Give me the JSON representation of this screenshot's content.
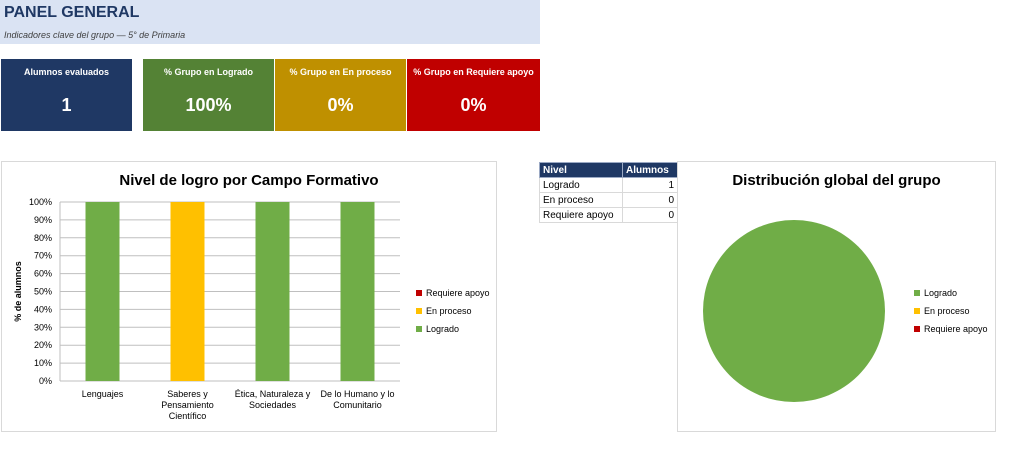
{
  "header": {
    "title": "PANEL GENERAL",
    "subtitle": "Indicadores clave del grupo — 5° de Primaria"
  },
  "kpis": [
    {
      "label": "Alumnos evaluados",
      "value": "1",
      "color": "#1f3864"
    },
    {
      "label": "% Grupo en Logrado",
      "value": "100%",
      "color": "#548235"
    },
    {
      "label": "% Grupo en En proceso",
      "value": "0%",
      "color": "#bf9000"
    },
    {
      "label": "% Grupo en Requiere apoyo",
      "value": "0%",
      "color": "#c00000"
    }
  ],
  "colors": {
    "logrado": "#70ad47",
    "en_proceso": "#ffc000",
    "requiere_apoyo": "#c00000"
  },
  "table": {
    "headers": [
      "Nivel",
      "Alumnos"
    ],
    "rows": [
      {
        "nivel": "Logrado",
        "alumnos": "1"
      },
      {
        "nivel": "En proceso",
        "alumnos": "0"
      },
      {
        "nivel": "Requiere apoyo",
        "alumnos": "0"
      }
    ]
  },
  "chart_data": [
    {
      "type": "bar",
      "stacked": true,
      "title": "Nivel de logro por Campo Formativo",
      "ylabel": "% de alumnos",
      "xlabel": "",
      "ylim": [
        0,
        100
      ],
      "yticks": [
        "0%",
        "10%",
        "20%",
        "30%",
        "40%",
        "50%",
        "60%",
        "70%",
        "80%",
        "90%",
        "100%"
      ],
      "categories": [
        [
          "Lenguajes"
        ],
        [
          "Saberes y",
          "Pensamiento",
          "Científico"
        ],
        [
          "Ética, Naturaleza y",
          "Sociedades"
        ],
        [
          "De lo Humano y lo",
          "Comunitario"
        ]
      ],
      "series": [
        {
          "name": "Logrado",
          "values": [
            100,
            0,
            100,
            100
          ],
          "color": "#70ad47"
        },
        {
          "name": "En proceso",
          "values": [
            0,
            100,
            0,
            0
          ],
          "color": "#ffc000"
        },
        {
          "name": "Requiere apoyo",
          "values": [
            0,
            0,
            0,
            0
          ],
          "color": "#c00000"
        }
      ],
      "legend": [
        "Requiere apoyo",
        "En proceso",
        "Logrado"
      ],
      "legend_position": "right",
      "grid": true
    },
    {
      "type": "pie",
      "title": "Distribución global del grupo",
      "slices": [
        {
          "name": "Logrado",
          "value": 1,
          "color": "#70ad47"
        },
        {
          "name": "En proceso",
          "value": 0,
          "color": "#ffc000"
        },
        {
          "name": "Requiere apoyo",
          "value": 0,
          "color": "#c00000"
        }
      ],
      "legend_position": "right"
    }
  ]
}
